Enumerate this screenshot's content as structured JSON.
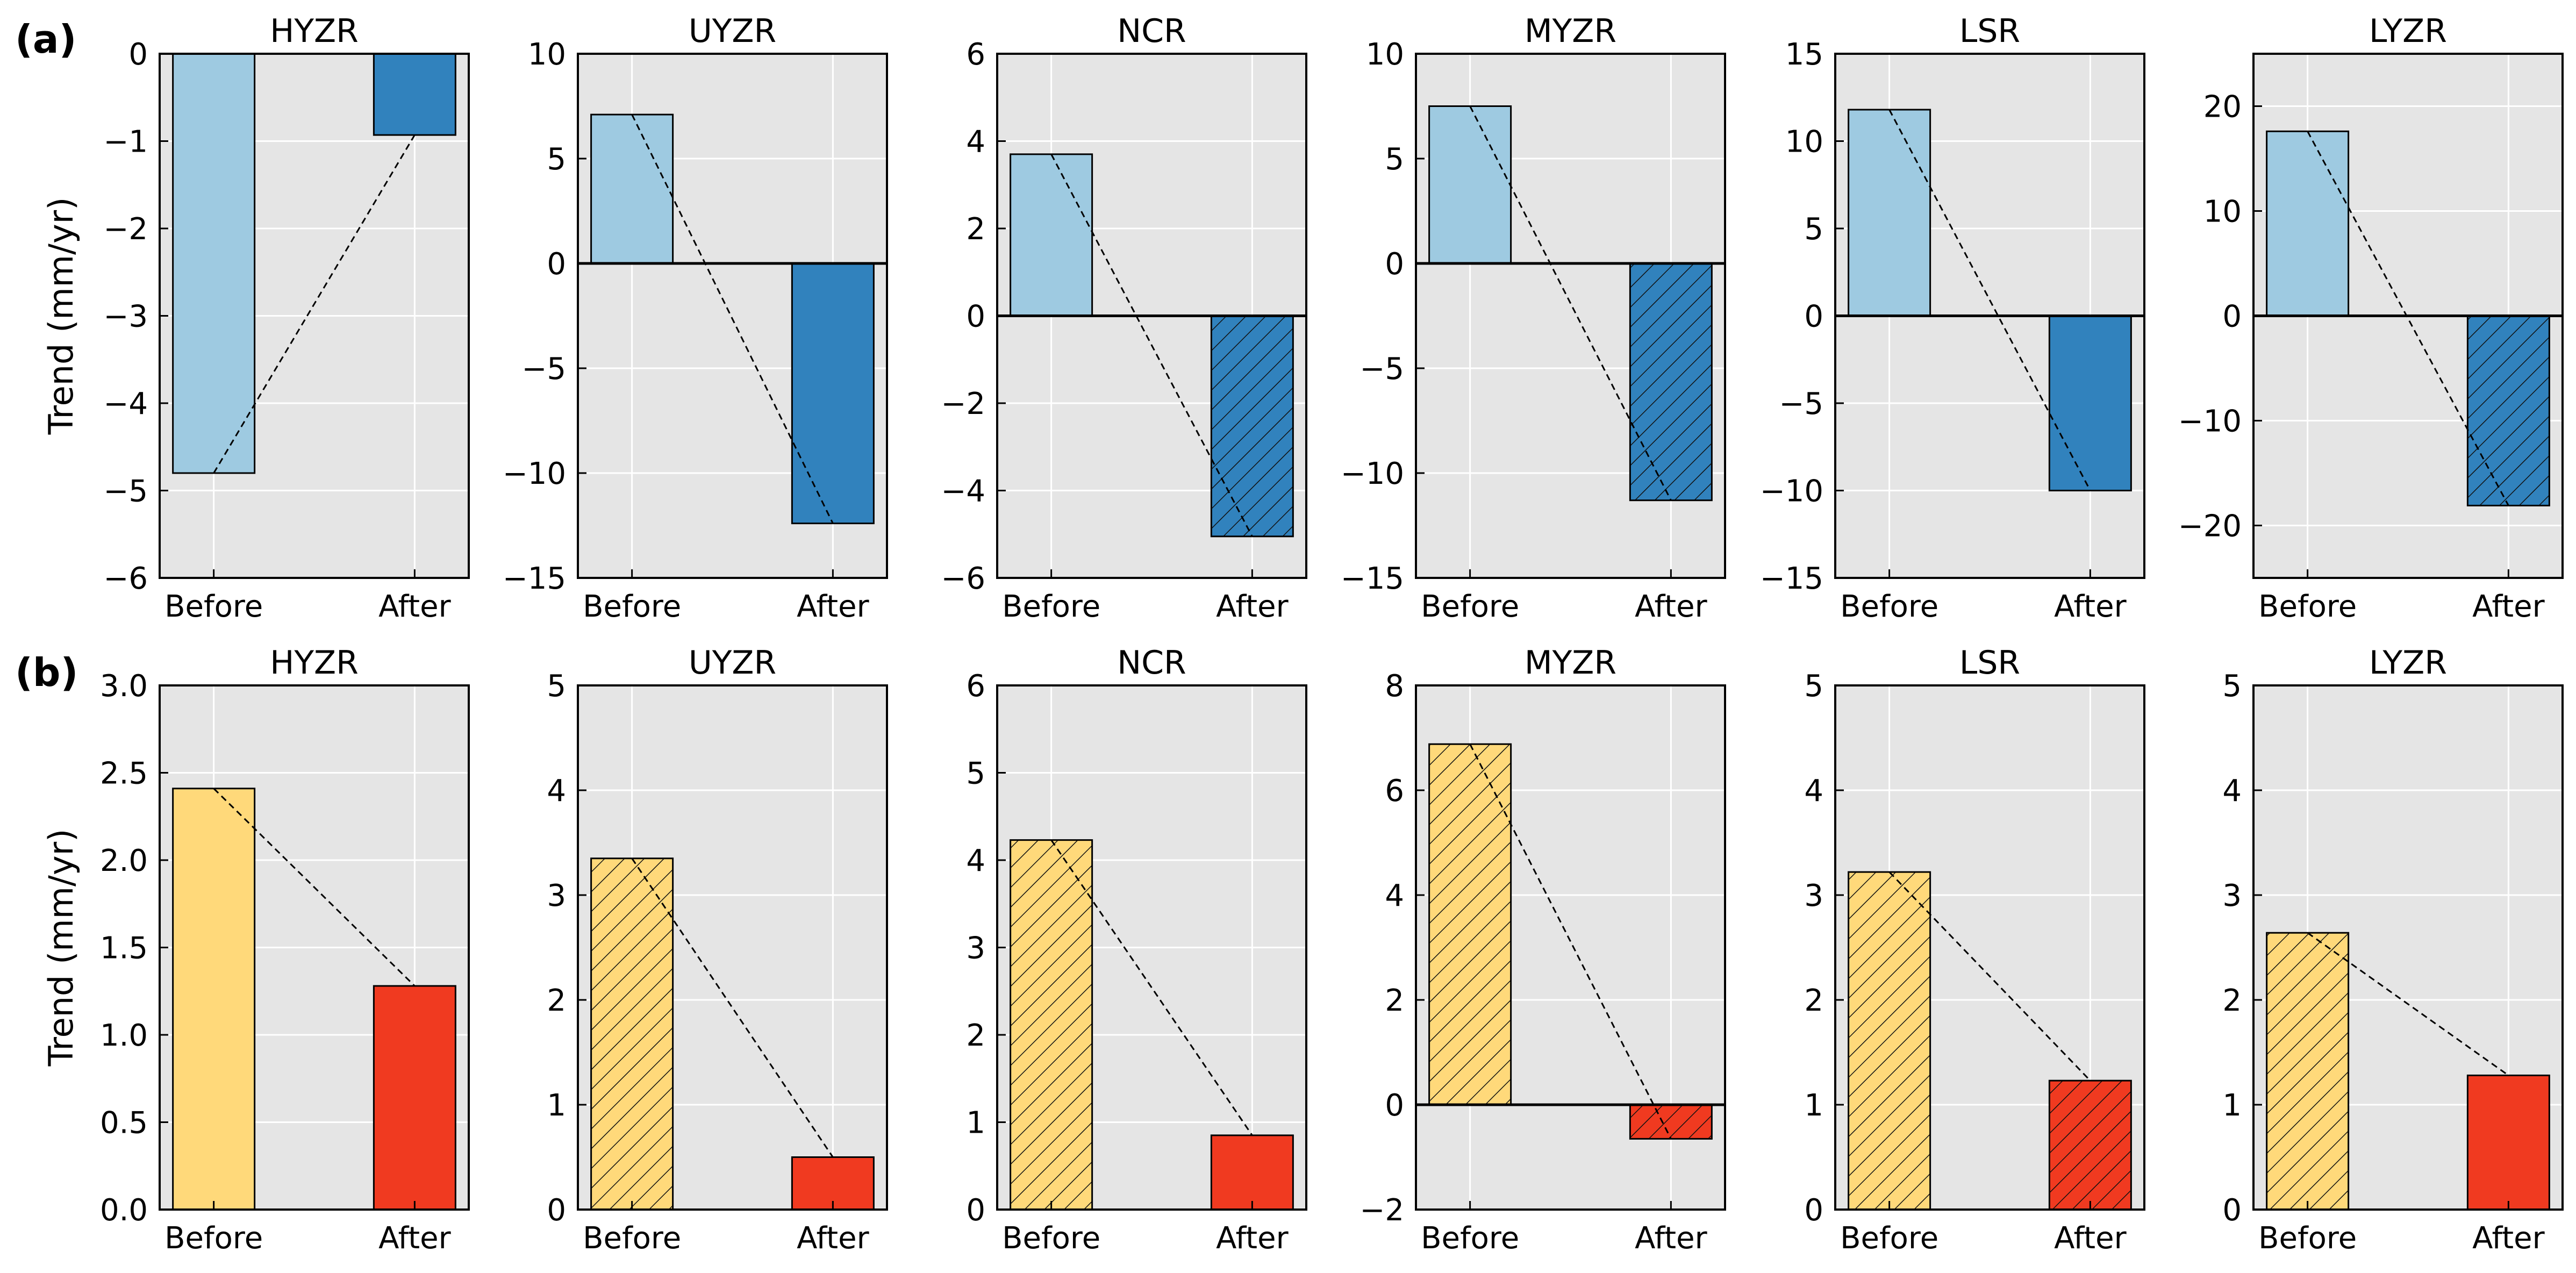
{
  "figure": {
    "panel_labels": [
      "(a)",
      "(b)"
    ],
    "ylabels": [
      "Trend (mm/yr)",
      "Trend (mm/yr)"
    ]
  },
  "colors": {
    "before_a": "#9ecae1",
    "after_a": "#3182bd",
    "before_b": "#ffd97a",
    "after_b": "#f03a20",
    "plot_bg": "#e5e5e5",
    "grid": "#ffffff"
  },
  "chart_data": [
    {
      "type": "bar",
      "row": "a",
      "title": "HYZR",
      "categories": [
        "Before",
        "After"
      ],
      "values": [
        -4.8,
        -0.93
      ],
      "hatched": [
        false,
        false
      ],
      "ylim": [
        -6,
        0
      ],
      "yticks": [
        -6,
        -5,
        -4,
        -3,
        -2,
        -1,
        0
      ],
      "ylabel": "Trend (mm/yr)"
    },
    {
      "type": "bar",
      "row": "a",
      "title": "UYZR",
      "categories": [
        "Before",
        "After"
      ],
      "values": [
        7.1,
        -12.4
      ],
      "hatched": [
        false,
        false
      ],
      "ylim": [
        -15,
        10
      ],
      "yticks": [
        -15,
        -10,
        -5,
        0,
        5,
        10
      ],
      "ylabel": ""
    },
    {
      "type": "bar",
      "row": "a",
      "title": "NCR",
      "categories": [
        "Before",
        "After"
      ],
      "values": [
        3.7,
        -5.05
      ],
      "hatched": [
        false,
        true
      ],
      "ylim": [
        -6,
        6
      ],
      "yticks": [
        -6,
        -4,
        -2,
        0,
        2,
        4,
        6
      ],
      "ylabel": ""
    },
    {
      "type": "bar",
      "row": "a",
      "title": "MYZR",
      "categories": [
        "Before",
        "After"
      ],
      "values": [
        7.5,
        -11.3
      ],
      "hatched": [
        false,
        true
      ],
      "ylim": [
        -15,
        10
      ],
      "yticks": [
        -15,
        -10,
        -5,
        0,
        5,
        10
      ],
      "ylabel": ""
    },
    {
      "type": "bar",
      "row": "a",
      "title": "LSR",
      "categories": [
        "Before",
        "After"
      ],
      "values": [
        11.8,
        -10.0
      ],
      "hatched": [
        false,
        false
      ],
      "ylim": [
        -15,
        15
      ],
      "yticks": [
        -15,
        -10,
        -5,
        0,
        5,
        10,
        15
      ],
      "ylabel": ""
    },
    {
      "type": "bar",
      "row": "a",
      "title": "LYZR",
      "categories": [
        "Before",
        "After"
      ],
      "values": [
        17.6,
        -18.1
      ],
      "hatched": [
        false,
        true
      ],
      "ylim": [
        -25,
        25
      ],
      "yticks": [
        -20,
        -10,
        0,
        10,
        20
      ],
      "ylabel": ""
    },
    {
      "type": "bar",
      "row": "b",
      "title": "HYZR",
      "categories": [
        "Before",
        "After"
      ],
      "values": [
        2.41,
        1.28
      ],
      "hatched": [
        false,
        false
      ],
      "ylim": [
        0,
        3
      ],
      "yticks": [
        "0.0",
        "0.5",
        "1.0",
        "1.5",
        "2.0",
        "2.5",
        "3.0"
      ],
      "ylabel": "Trend (mm/yr)"
    },
    {
      "type": "bar",
      "row": "b",
      "title": "UYZR",
      "categories": [
        "Before",
        "After"
      ],
      "values": [
        3.35,
        0.5
      ],
      "hatched": [
        true,
        false
      ],
      "ylim": [
        0,
        5
      ],
      "yticks": [
        0,
        1,
        2,
        3,
        4,
        5
      ],
      "ylabel": ""
    },
    {
      "type": "bar",
      "row": "b",
      "title": "NCR",
      "categories": [
        "Before",
        "After"
      ],
      "values": [
        4.23,
        0.85
      ],
      "hatched": [
        true,
        false
      ],
      "ylim": [
        0,
        6
      ],
      "yticks": [
        0,
        1,
        2,
        3,
        4,
        5,
        6
      ],
      "ylabel": ""
    },
    {
      "type": "bar",
      "row": "b",
      "title": "MYZR",
      "categories": [
        "Before",
        "After"
      ],
      "values": [
        6.88,
        -0.65
      ],
      "hatched": [
        true,
        true
      ],
      "ylim": [
        -2,
        8
      ],
      "yticks": [
        -2,
        0,
        2,
        4,
        6,
        8
      ],
      "ylabel": ""
    },
    {
      "type": "bar",
      "row": "b",
      "title": "LSR",
      "categories": [
        "Before",
        "After"
      ],
      "values": [
        3.22,
        1.23
      ],
      "hatched": [
        true,
        true
      ],
      "ylim": [
        0,
        5
      ],
      "yticks": [
        0,
        1,
        2,
        3,
        4,
        5
      ],
      "ylabel": ""
    },
    {
      "type": "bar",
      "row": "b",
      "title": "LYZR",
      "categories": [
        "Before",
        "After"
      ],
      "values": [
        2.64,
        1.28
      ],
      "hatched": [
        true,
        false
      ],
      "ylim": [
        0,
        5
      ],
      "yticks": [
        0,
        1,
        2,
        3,
        4,
        5
      ],
      "ylabel": ""
    }
  ]
}
